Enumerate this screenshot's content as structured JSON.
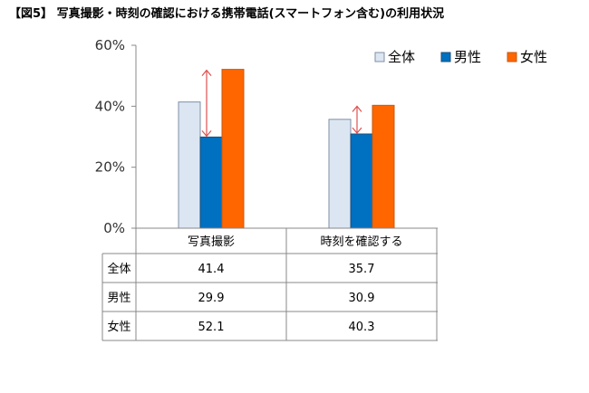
{
  "title": "【図5】 写真撮影・時刻の確認における携帯電話(スマートフォン含む)の利用状況",
  "chart_data": {
    "type": "bar",
    "categories": [
      "写真撮影",
      "時刻を確認する"
    ],
    "series": [
      {
        "name": "全体",
        "values": [
          41.4,
          35.7
        ],
        "color": "#dce6f2",
        "stroke": "#7f8fa6"
      },
      {
        "name": "男性",
        "values": [
          29.9,
          30.9
        ],
        "color": "#0070c0",
        "stroke": "#1f4e79"
      },
      {
        "name": "女性",
        "values": [
          52.1,
          40.3
        ],
        "color": "#ff6600",
        "stroke": "#c55a11"
      }
    ],
    "table_values": [
      [
        "41.4",
        "35.7"
      ],
      [
        "29.9",
        "30.9"
      ],
      [
        "52.1",
        "40.3"
      ]
    ],
    "y_ticks": [
      "0%",
      "20%",
      "40%",
      "60%"
    ],
    "ylim": [
      0,
      60
    ],
    "legend_position": "top-right",
    "gridlines": false,
    "annotation_color": "#e05050"
  }
}
